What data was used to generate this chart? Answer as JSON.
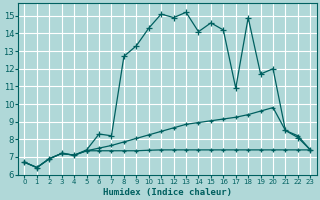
{
  "xlabel": "Humidex (Indice chaleur)",
  "background_color": "#b0d8d8",
  "grid_color": "#ffffff",
  "line_color": "#006060",
  "xlim": [
    -0.5,
    23.5
  ],
  "ylim": [
    6.0,
    15.7
  ],
  "yticks": [
    6,
    7,
    8,
    9,
    10,
    11,
    12,
    13,
    14,
    15
  ],
  "xticks": [
    0,
    1,
    2,
    3,
    4,
    5,
    6,
    7,
    8,
    9,
    10,
    11,
    12,
    13,
    14,
    15,
    16,
    17,
    18,
    19,
    20,
    21,
    22,
    23
  ],
  "line1_x": [
    0,
    1,
    2,
    3,
    4,
    5,
    6,
    7,
    8,
    9,
    10,
    11,
    12,
    13,
    14,
    15,
    16,
    17,
    18,
    19,
    20,
    21,
    22,
    23
  ],
  "line1_y": [
    6.7,
    6.4,
    6.9,
    7.2,
    7.1,
    7.4,
    8.3,
    8.2,
    12.7,
    13.3,
    14.3,
    15.1,
    14.9,
    15.2,
    14.1,
    14.6,
    14.2,
    10.9,
    14.9,
    11.7,
    12.0,
    8.5,
    8.1,
    7.4
  ],
  "line2_x": [
    0,
    1,
    2,
    3,
    4,
    5,
    6,
    7,
    8,
    9,
    10,
    11,
    12,
    13,
    14,
    15,
    16,
    17,
    18,
    19,
    20,
    21,
    22,
    23
  ],
  "line2_y": [
    6.7,
    6.4,
    6.9,
    7.2,
    7.1,
    7.35,
    7.5,
    7.65,
    7.85,
    8.05,
    8.25,
    8.45,
    8.65,
    8.85,
    8.95,
    9.05,
    9.15,
    9.25,
    9.4,
    9.6,
    9.8,
    8.5,
    8.2,
    7.4
  ],
  "line3_x": [
    0,
    1,
    2,
    3,
    4,
    5,
    6,
    7,
    8,
    9,
    10,
    11,
    12,
    13,
    14,
    15,
    16,
    17,
    18,
    19,
    20,
    21,
    22,
    23
  ],
  "line3_y": [
    6.7,
    6.4,
    6.9,
    7.2,
    7.1,
    7.35,
    7.35,
    7.35,
    7.35,
    7.35,
    7.38,
    7.4,
    7.4,
    7.4,
    7.4,
    7.4,
    7.4,
    7.4,
    7.4,
    7.4,
    7.4,
    7.4,
    7.4,
    7.4
  ]
}
